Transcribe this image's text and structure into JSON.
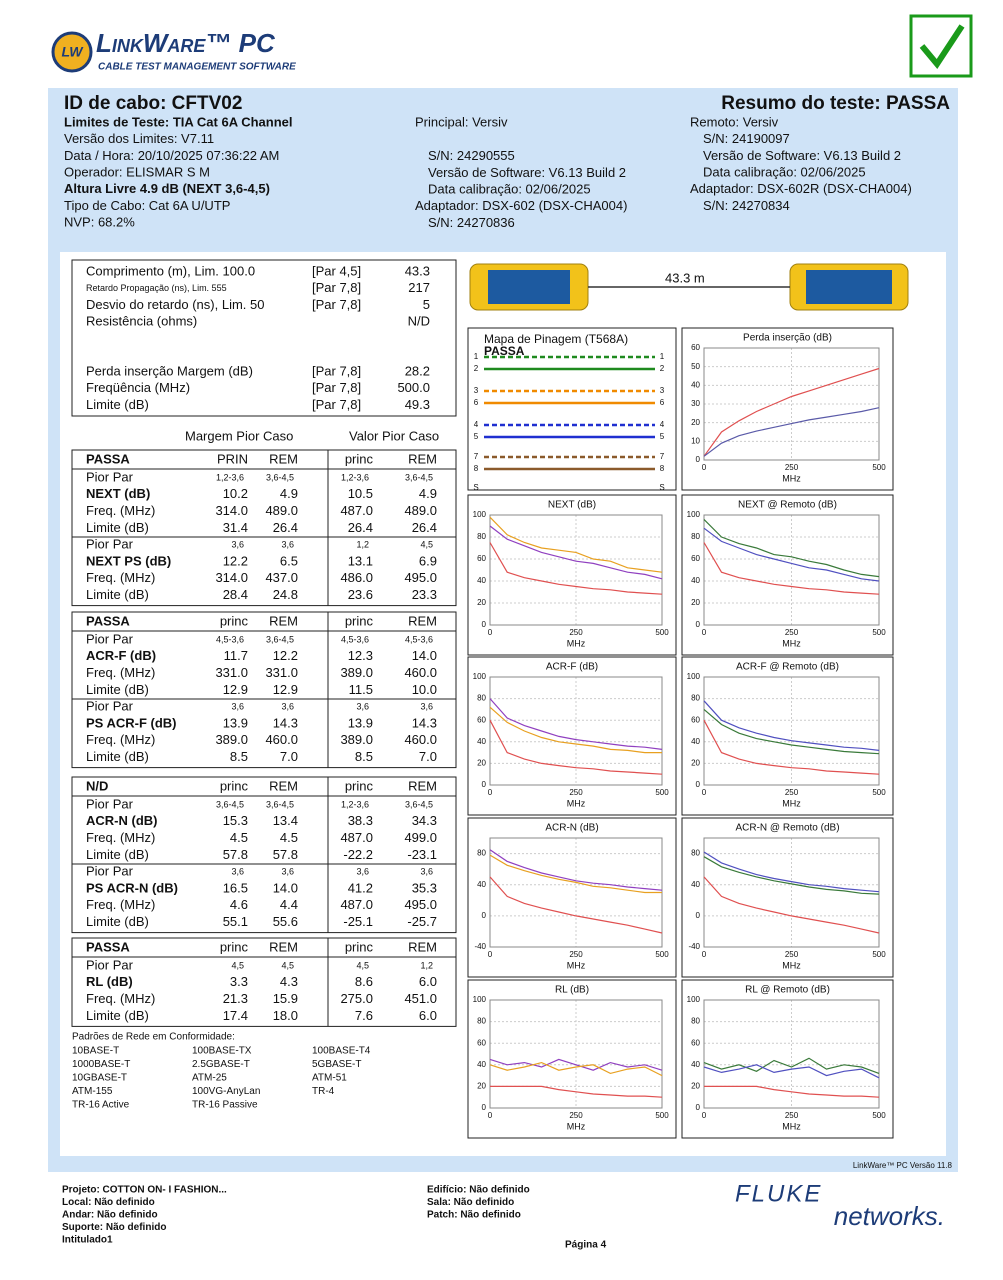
{
  "header": {
    "logo_mark": "LW",
    "logo_title": "LinkWare™ PC",
    "logo_subtitle": "CABLE TEST MANAGEMENT SOFTWARE"
  },
  "info": {
    "cable_id": "ID de cabo: CFTV02",
    "summary": "Resumo do teste: PASSA",
    "left": [
      "Limites de Teste: TIA Cat 6A Channel",
      "Versão dos Limites: V7.11",
      "Data / Hora: 20/10/2025  07:36:22 AM",
      "Operador: ELISMAR S M",
      "Altura Livre 4.9 dB (NEXT 3,6-4,5)",
      "Tipo de Cabo: Cat 6A U/UTP",
      "NVP: 68.2%"
    ],
    "main": [
      "Principal: Versiv",
      "S/N: 24290555",
      "Versão de Software: V6.13 Build 2",
      "Data calibração: 02/06/2025",
      "Adaptador: DSX-602 (DSX-CHA004)",
      "S/N: 24270836"
    ],
    "remote": [
      "Remoto: Versiv",
      "S/N: 24190097",
      "Versão de Software: V6.13 Build 2",
      "Data calibração: 02/06/2025",
      "Adaptador: DSX-602R (DSX-CHA004)",
      "S/N: 24270834"
    ]
  },
  "summary_rows": [
    {
      "label": "Comprimento (m), Lim. 100.0",
      "pair": "[Par 4,5]",
      "value": "43.3"
    },
    {
      "label": "Retardo Propagação (ns), Lim. 555",
      "pair": "[Par 7,8]",
      "value": "217"
    },
    {
      "label": "Desvio do retardo (ns), Lim. 50",
      "pair": "[Par 7,8]",
      "value": "5"
    },
    {
      "label": "Resistência (ohms)",
      "value": "N/D"
    },
    {
      "label": "Perda inserção Margem (dB)",
      "pair": "[Par 7,8]",
      "value": "28.2"
    },
    {
      "label": "Freqüência (MHz)",
      "pair": "[Par 7,8]",
      "value": "500.0"
    },
    {
      "label": "Limite (dB)",
      "pair": "[Par 7,8]",
      "value": "49.3"
    }
  ],
  "column_headings": [
    "Margem Pior Caso",
    "Valor Pior Caso"
  ],
  "result_groups": [
    {
      "header": [
        "PASSA",
        "PRIN",
        "REM",
        "princ",
        "REM"
      ],
      "rows": [
        [
          "Pior Par",
          "1,2-3,6",
          "3,6-4,5",
          "1,2-3,6",
          "3,6-4,5"
        ],
        [
          "NEXT (dB)",
          "10.2",
          "4.9",
          "10.5",
          "4.9"
        ],
        [
          "Freq. (MHz)",
          "314.0",
          "489.0",
          "487.0",
          "489.0"
        ],
        [
          "Limite (dB)",
          "31.4",
          "26.4",
          "26.4",
          "26.4"
        ],
        [
          "Pior Par",
          "3,6",
          "3,6",
          "1,2",
          "4,5"
        ],
        [
          "NEXT PS  (dB)",
          "12.2",
          "6.5",
          "13.1",
          "6.9"
        ],
        [
          "Freq. (MHz)",
          "314.0",
          "437.0",
          "486.0",
          "495.0"
        ],
        [
          "Limite (dB)",
          "28.4",
          "24.8",
          "23.6",
          "23.3"
        ]
      ]
    },
    {
      "header": [
        "PASSA",
        "princ",
        "REM",
        "princ",
        "REM"
      ],
      "rows": [
        [
          "Pior Par",
          "4,5-3,6",
          "3,6-4,5",
          "4,5-3,6",
          "4,5-3,6"
        ],
        [
          "ACR-F (dB)",
          "11.7",
          "12.2",
          "12.3",
          "14.0"
        ],
        [
          "Freq. (MHz)",
          "331.0",
          "331.0",
          "389.0",
          "460.0"
        ],
        [
          "Limite (dB)",
          "12.9",
          "12.9",
          "11.5",
          "10.0"
        ],
        [
          "Pior Par",
          "3,6",
          "3,6",
          "3,6",
          "3,6"
        ],
        [
          "PS ACR-F (dB)",
          "13.9",
          "14.3",
          "13.9",
          "14.3"
        ],
        [
          "Freq. (MHz)",
          "389.0",
          "460.0",
          "389.0",
          "460.0"
        ],
        [
          "Limite (dB)",
          "8.5",
          "7.0",
          "8.5",
          "7.0"
        ]
      ]
    },
    {
      "header": [
        "N/D",
        "princ",
        "REM",
        "princ",
        "REM"
      ],
      "rows": [
        [
          "Pior Par",
          "3,6-4,5",
          "3,6-4,5",
          "1,2-3,6",
          "3,6-4,5"
        ],
        [
          "ACR-N (dB)",
          "15.3",
          "13.4",
          "38.3",
          "34.3"
        ],
        [
          "Freq. (MHz)",
          "4.5",
          "4.5",
          "487.0",
          "499.0"
        ],
        [
          "Limite (dB)",
          "57.8",
          "57.8",
          "-22.2",
          "-23.1"
        ],
        [
          "Pior Par",
          "3,6",
          "3,6",
          "3,6",
          "3,6"
        ],
        [
          "PS ACR-N (dB)",
          "16.5",
          "14.0",
          "41.2",
          "35.3"
        ],
        [
          "Freq. (MHz)",
          "4.6",
          "4.4",
          "487.0",
          "495.0"
        ],
        [
          "Limite (dB)",
          "55.1",
          "55.6",
          "-25.1",
          "-25.7"
        ]
      ]
    },
    {
      "header": [
        "PASSA",
        "princ",
        "REM",
        "princ",
        "REM"
      ],
      "rows": [
        [
          "Pior Par",
          "4,5",
          "4,5",
          "4,5",
          "1,2"
        ],
        [
          "RL (dB)",
          "3.3",
          "4.3",
          "8.6",
          "6.0"
        ],
        [
          "Freq. (MHz)",
          "21.3",
          "15.9",
          "275.0",
          "451.0"
        ],
        [
          "Limite (dB)",
          "17.4",
          "18.0",
          "7.6",
          "6.0"
        ]
      ]
    }
  ],
  "standards": {
    "title": "Padrões de Rede em Conformidade:",
    "columns": [
      [
        "10BASE-T",
        "1000BASE-T",
        "10GBASE-T",
        "ATM-155",
        "TR-16 Active"
      ],
      [
        "100BASE-TX",
        "2.5GBASE-T",
        "ATM-25",
        "100VG-AnyLan",
        "TR-16 Passive"
      ],
      [
        "100BASE-T4",
        "5GBASE-T",
        "ATM-51",
        "TR-4"
      ]
    ]
  },
  "cable_length_label": "43.3 m",
  "wiremap": {
    "title": "Mapa de Pinagem (T568A)",
    "status": "PASSA",
    "pins": [
      {
        "left": "1",
        "right": "1",
        "color": "#1f8a1f"
      },
      {
        "left": "2",
        "right": "2",
        "color": "#1f8a1f"
      },
      {
        "left": "3",
        "right": "3",
        "color": "#f08a00"
      },
      {
        "left": "6",
        "right": "6",
        "color": "#f08a00"
      },
      {
        "left": "4",
        "right": "4",
        "color": "#1f2fd0"
      },
      {
        "left": "5",
        "right": "5",
        "color": "#1f2fd0"
      },
      {
        "left": "7",
        "right": "7",
        "color": "#8b5a2b"
      },
      {
        "left": "8",
        "right": "8",
        "color": "#8b5a2b"
      },
      {
        "left": "S",
        "right": "S"
      }
    ]
  },
  "graphs": [
    {
      "title": "Perda inserção (dB)",
      "xlabel": "MHz",
      "xlim": [
        0,
        500
      ],
      "xticks": [
        0,
        250,
        500
      ],
      "ylim": [
        0,
        60
      ],
      "yticks": [
        0,
        10,
        20,
        30,
        40,
        50,
        60
      ],
      "x": [
        0,
        50,
        100,
        150,
        200,
        250,
        300,
        350,
        400,
        450,
        500
      ],
      "series": [
        {
          "color": "#e05050",
          "values": [
            2,
            15,
            21,
            26,
            30,
            34,
            37,
            40,
            43,
            46,
            49
          ]
        },
        {
          "color": "#5a5aa8",
          "values": [
            2,
            9,
            13,
            15.5,
            17.5,
            19.5,
            21.5,
            23,
            24.5,
            26,
            28
          ]
        }
      ]
    },
    {
      "title": "NEXT (dB)",
      "xlabel": "MHz",
      "xlim": [
        0,
        500
      ],
      "xticks": [
        0,
        250,
        500
      ],
      "ylim": [
        0,
        100
      ],
      "yticks": [
        0,
        20,
        40,
        60,
        80,
        100
      ],
      "x": [
        0,
        50,
        100,
        150,
        200,
        250,
        300,
        350,
        400,
        450,
        500
      ],
      "series": [
        {
          "color": "#e8a020",
          "values": [
            98,
            82,
            75,
            70,
            68,
            66,
            60,
            58,
            52,
            50,
            48
          ]
        },
        {
          "color": "#9040c0",
          "values": [
            90,
            78,
            72,
            66,
            62,
            58,
            56,
            52,
            48,
            46,
            42
          ]
        },
        {
          "color": "#e05050",
          "values": [
            75,
            48,
            43,
            40,
            37,
            35,
            33,
            32,
            30,
            29,
            28
          ]
        }
      ]
    },
    {
      "title": "NEXT @ Remoto (dB)",
      "xlabel": "MHz",
      "xlim": [
        0,
        500
      ],
      "xticks": [
        0,
        250,
        500
      ],
      "ylim": [
        0,
        100
      ],
      "yticks": [
        0,
        20,
        40,
        60,
        80,
        100
      ],
      "x": [
        0,
        50,
        100,
        150,
        200,
        250,
        300,
        350,
        400,
        450,
        500
      ],
      "series": [
        {
          "color": "#3a7a3a",
          "values": [
            96,
            80,
            74,
            70,
            64,
            62,
            58,
            55,
            50,
            46,
            44
          ]
        },
        {
          "color": "#5050c0",
          "values": [
            88,
            76,
            70,
            64,
            60,
            56,
            52,
            50,
            46,
            42,
            40
          ]
        },
        {
          "color": "#e05050",
          "values": [
            75,
            48,
            43,
            40,
            37,
            35,
            33,
            32,
            30,
            29,
            28
          ]
        }
      ]
    },
    {
      "title": "ACR-F (dB)",
      "xlabel": "MHz",
      "xlim": [
        0,
        500
      ],
      "xticks": [
        0,
        250,
        500
      ],
      "ylim": [
        0,
        100
      ],
      "yticks": [
        0,
        20,
        40,
        60,
        80,
        100
      ],
      "x": [
        0,
        50,
        100,
        150,
        200,
        250,
        300,
        350,
        400,
        450,
        500
      ],
      "series": [
        {
          "color": "#9040c0",
          "values": [
            80,
            62,
            55,
            50,
            45,
            42,
            40,
            38,
            36,
            35,
            33
          ]
        },
        {
          "color": "#e8a020",
          "values": [
            72,
            58,
            50,
            44,
            40,
            38,
            36,
            33,
            32,
            30,
            30
          ]
        },
        {
          "color": "#e05050",
          "values": [
            60,
            30,
            24,
            20,
            18,
            16,
            15,
            13,
            12,
            11,
            10
          ]
        }
      ]
    },
    {
      "title": "ACR-F @ Remoto (dB)",
      "xlabel": "MHz",
      "xlim": [
        0,
        500
      ],
      "xticks": [
        0,
        250,
        500
      ],
      "ylim": [
        0,
        100
      ],
      "yticks": [
        0,
        20,
        40,
        60,
        80,
        100
      ],
      "x": [
        0,
        50,
        100,
        150,
        200,
        250,
        300,
        350,
        400,
        450,
        500
      ],
      "series": [
        {
          "color": "#5050c0",
          "values": [
            78,
            60,
            53,
            48,
            44,
            41,
            39,
            37,
            35,
            34,
            32
          ]
        },
        {
          "color": "#3a7a3a",
          "values": [
            70,
            56,
            48,
            43,
            40,
            37,
            35,
            33,
            31,
            30,
            29
          ]
        },
        {
          "color": "#e05050",
          "values": [
            60,
            30,
            24,
            20,
            18,
            16,
            15,
            13,
            12,
            11,
            10
          ]
        }
      ]
    },
    {
      "title": "ACR-N (dB)",
      "xlabel": "MHz",
      "xlim": [
        0,
        500
      ],
      "xticks": [
        0,
        250,
        500
      ],
      "ylim": [
        -40,
        100
      ],
      "yticks": [
        -40,
        0,
        40,
        80
      ],
      "x": [
        0,
        50,
        100,
        150,
        200,
        250,
        300,
        350,
        400,
        450,
        500
      ],
      "series": [
        {
          "color": "#9040c0",
          "values": [
            85,
            70,
            62,
            55,
            50,
            45,
            42,
            40,
            37,
            35,
            33
          ]
        },
        {
          "color": "#e8a020",
          "values": [
            78,
            65,
            58,
            52,
            47,
            43,
            38,
            36,
            33,
            30,
            30
          ]
        },
        {
          "color": "#e05050",
          "values": [
            50,
            25,
            16,
            10,
            5,
            0,
            -4,
            -8,
            -12,
            -17,
            -22
          ]
        }
      ]
    },
    {
      "title": "ACR-N @ Remoto (dB)",
      "xlabel": "MHz",
      "xlim": [
        0,
        500
      ],
      "xticks": [
        0,
        250,
        500
      ],
      "ylim": [
        -40,
        100
      ],
      "yticks": [
        -40,
        0,
        40,
        80
      ],
      "x": [
        0,
        50,
        100,
        150,
        200,
        250,
        300,
        350,
        400,
        450,
        500
      ],
      "series": [
        {
          "color": "#5050c0",
          "values": [
            82,
            68,
            60,
            53,
            48,
            44,
            40,
            38,
            35,
            33,
            31
          ]
        },
        {
          "color": "#3a7a3a",
          "values": [
            76,
            63,
            56,
            50,
            45,
            41,
            37,
            34,
            32,
            29,
            28
          ]
        },
        {
          "color": "#e05050",
          "values": [
            50,
            25,
            16,
            10,
            5,
            0,
            -4,
            -8,
            -12,
            -17,
            -22
          ]
        }
      ]
    },
    {
      "title": "RL (dB)",
      "xlabel": "MHz",
      "xlim": [
        0,
        500
      ],
      "xticks": [
        0,
        250,
        500
      ],
      "ylim": [
        0,
        100
      ],
      "yticks": [
        0,
        20,
        40,
        60,
        80,
        100
      ],
      "x": [
        0,
        50,
        100,
        150,
        200,
        250,
        300,
        350,
        400,
        450,
        500
      ],
      "series": [
        {
          "color": "#9040c0",
          "values": [
            45,
            40,
            42,
            38,
            45,
            40,
            35,
            42,
            38,
            40,
            35
          ]
        },
        {
          "color": "#e8a020",
          "values": [
            40,
            35,
            38,
            42,
            35,
            38,
            40,
            32,
            36,
            38,
            30
          ]
        },
        {
          "color": "#e05050",
          "values": [
            20,
            20,
            20,
            20,
            17,
            15,
            13,
            12,
            11,
            11,
            10
          ]
        }
      ]
    },
    {
      "title": "RL @ Remoto (dB)",
      "xlabel": "MHz",
      "xlim": [
        0,
        500
      ],
      "xticks": [
        0,
        250,
        500
      ],
      "ylim": [
        0,
        100
      ],
      "yticks": [
        0,
        20,
        40,
        60,
        80,
        100
      ],
      "x": [
        0,
        50,
        100,
        150,
        200,
        250,
        300,
        350,
        400,
        450,
        500
      ],
      "series": [
        {
          "color": "#3a7a3a",
          "values": [
            42,
            36,
            40,
            34,
            44,
            38,
            46,
            36,
            40,
            38,
            32
          ]
        },
        {
          "color": "#5050c0",
          "values": [
            38,
            33,
            36,
            40,
            33,
            36,
            38,
            30,
            34,
            36,
            28
          ]
        },
        {
          "color": "#e05050",
          "values": [
            20,
            20,
            20,
            20,
            17,
            15,
            13,
            12,
            11,
            11,
            10
          ]
        }
      ]
    }
  ],
  "footer": {
    "version": "LinkWare™ PC Versão 11.8",
    "left": [
      "Projeto: COTTON ON- I FASHION...",
      "Local: Não definido",
      "Andar: Não definido",
      "Suporte: Não definido",
      "Intitulado1"
    ],
    "middle": [
      "Edifício: Não definido",
      "Sala: Não definido",
      "Patch: Não definido"
    ],
    "page": "Página 4",
    "brand": [
      "FLUKE",
      "networks."
    ]
  }
}
